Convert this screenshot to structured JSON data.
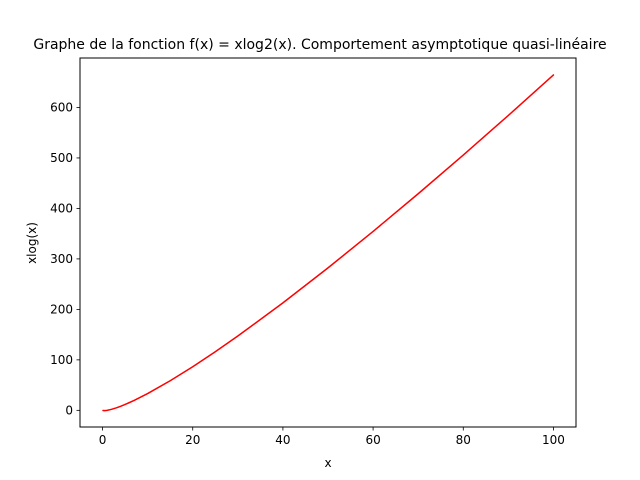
{
  "chart_data": {
    "type": "line",
    "title": "Graphe de la fonction f(x) = xlog2(x). Comportement asymptotique quasi-linéaire",
    "xlabel": "x",
    "ylabel": "xlog(x)",
    "xlim": [
      -5,
      105
    ],
    "ylim": [
      -33,
      698
    ],
    "x_ticks": [
      0,
      20,
      40,
      60,
      80,
      100
    ],
    "x_tick_labels": [
      "0",
      "20",
      "40",
      "60",
      "80",
      "100"
    ],
    "y_ticks": [
      0,
      100,
      200,
      300,
      400,
      500,
      600
    ],
    "y_tick_labels": [
      "0",
      "100",
      "200",
      "300",
      "400",
      "500",
      "600"
    ],
    "grid": false,
    "legend": "none",
    "series": [
      {
        "color": "#ff0000",
        "x": [
          0.1,
          0.5,
          1,
          2,
          3,
          4,
          5,
          7,
          10,
          15,
          20,
          25,
          30,
          40,
          50,
          60,
          70,
          80,
          90,
          100
        ],
        "y": [
          -0.3,
          -0.5,
          0,
          2,
          4.8,
          8,
          11.6,
          19.7,
          33.2,
          58.6,
          86.4,
          116.1,
          147.2,
          212.9,
          282.2,
          354.4,
          429.1,
          505.8,
          584.3,
          664.4
        ]
      }
    ]
  }
}
